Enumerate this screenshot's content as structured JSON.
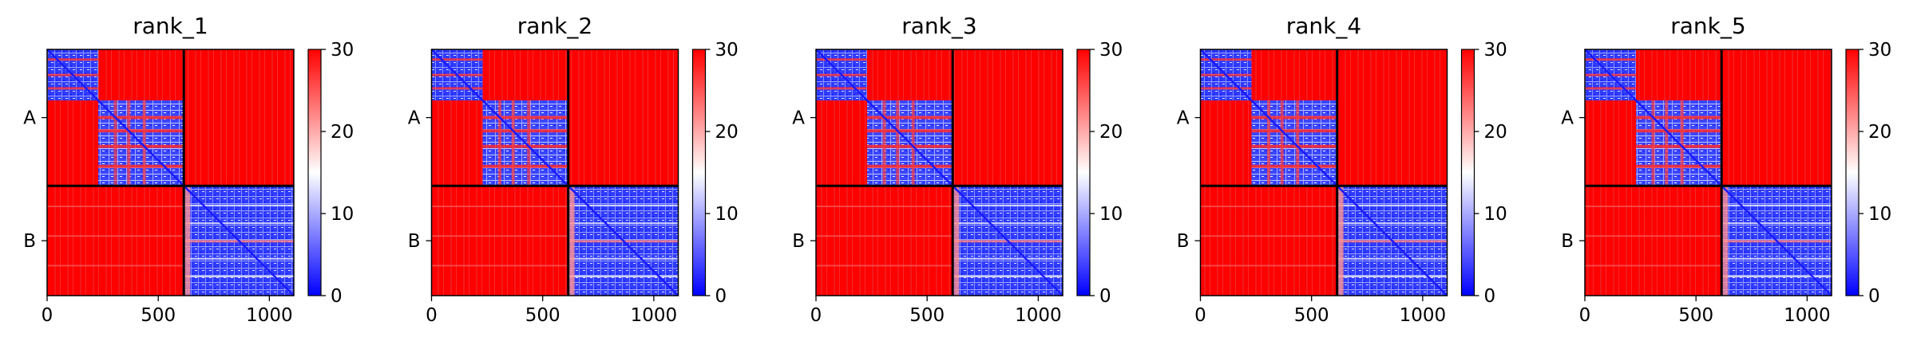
{
  "chart_data": [
    {
      "type": "heatmap",
      "title": "rank_1",
      "xlabel": "",
      "ylabel": "",
      "x_ticks": [
        0,
        500,
        1000
      ],
      "xlim": [
        0,
        1110
      ],
      "y_tick_labels": [
        "A",
        "B"
      ],
      "chain_boundary": 615,
      "colorbar": {
        "cmap": "bwr",
        "range": [
          0,
          30
        ],
        "ticks": [
          0,
          10,
          20,
          30
        ]
      }
    },
    {
      "type": "heatmap",
      "title": "rank_2",
      "xlabel": "",
      "ylabel": "",
      "x_ticks": [
        0,
        500,
        1000
      ],
      "xlim": [
        0,
        1110
      ],
      "y_tick_labels": [
        "A",
        "B"
      ],
      "chain_boundary": 615,
      "colorbar": {
        "cmap": "bwr",
        "range": [
          0,
          30
        ],
        "ticks": [
          0,
          10,
          20,
          30
        ]
      }
    },
    {
      "type": "heatmap",
      "title": "rank_3",
      "xlabel": "",
      "ylabel": "",
      "x_ticks": [
        0,
        500,
        1000
      ],
      "xlim": [
        0,
        1110
      ],
      "y_tick_labels": [
        "A",
        "B"
      ],
      "chain_boundary": 615,
      "colorbar": {
        "cmap": "bwr",
        "range": [
          0,
          30
        ],
        "ticks": [
          0,
          10,
          20,
          30
        ]
      }
    },
    {
      "type": "heatmap",
      "title": "rank_4",
      "xlabel": "",
      "ylabel": "",
      "x_ticks": [
        0,
        500,
        1000
      ],
      "xlim": [
        0,
        1110
      ],
      "y_tick_labels": [
        "A",
        "B"
      ],
      "chain_boundary": 615,
      "colorbar": {
        "cmap": "bwr",
        "range": [
          0,
          30
        ],
        "ticks": [
          0,
          10,
          20,
          30
        ]
      }
    },
    {
      "type": "heatmap",
      "title": "rank_5",
      "xlabel": "",
      "ylabel": "",
      "x_ticks": [
        0,
        500,
        1000
      ],
      "xlim": [
        0,
        1110
      ],
      "y_tick_labels": [
        "A",
        "B"
      ],
      "chain_boundary": 615,
      "colorbar": {
        "cmap": "bwr",
        "range": [
          0,
          30
        ],
        "ticks": [
          0,
          10,
          20,
          30
        ]
      }
    }
  ]
}
